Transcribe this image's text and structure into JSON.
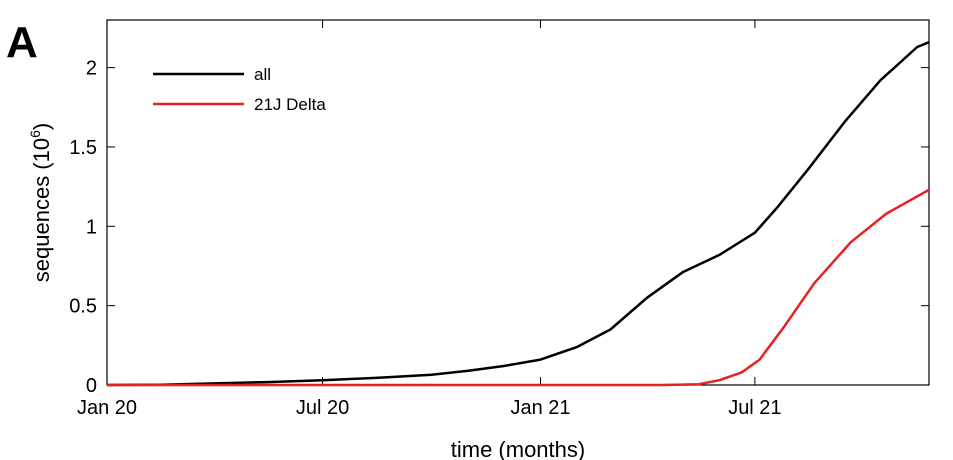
{
  "panel_label": "A",
  "chart_data": {
    "type": "line",
    "xlabel": "time (months)",
    "ylabel": "sequences (10",
    "ylabel_exponent": "6",
    "ylabel_close": ")",
    "x_domain": [
      "2020-01-01",
      "2021-11-25"
    ],
    "ylim": [
      0,
      2.3
    ],
    "grid": false,
    "legend_position": "top-left",
    "x_ticks": [
      {
        "date": "2020-01-01",
        "label": "Jan 20"
      },
      {
        "date": "2020-07-01",
        "label": "Jul 20"
      },
      {
        "date": "2021-01-01",
        "label": "Jan 21"
      },
      {
        "date": "2021-07-01",
        "label": "Jul 21"
      }
    ],
    "y_ticks": [
      {
        "value": 0,
        "label": "0"
      },
      {
        "value": 0.5,
        "label": "0.5"
      },
      {
        "value": 1,
        "label": "1"
      },
      {
        "value": 1.5,
        "label": "1.5"
      },
      {
        "value": 2,
        "label": "2"
      }
    ],
    "series": [
      {
        "name": "all",
        "color": "#000000",
        "points": [
          [
            "2020-01-01",
            0
          ],
          [
            "2020-02-15",
            0.002
          ],
          [
            "2020-04-01",
            0.01
          ],
          [
            "2020-05-15",
            0.018
          ],
          [
            "2020-07-01",
            0.03
          ],
          [
            "2020-08-15",
            0.045
          ],
          [
            "2020-10-01",
            0.065
          ],
          [
            "2020-11-01",
            0.09
          ],
          [
            "2020-12-01",
            0.12
          ],
          [
            "2021-01-01",
            0.16
          ],
          [
            "2021-02-01",
            0.24
          ],
          [
            "2021-03-01",
            0.35
          ],
          [
            "2021-04-01",
            0.55
          ],
          [
            "2021-05-01",
            0.71
          ],
          [
            "2021-06-01",
            0.82
          ],
          [
            "2021-07-01",
            0.96
          ],
          [
            "2021-07-20",
            1.12
          ],
          [
            "2021-08-15",
            1.36
          ],
          [
            "2021-09-15",
            1.66
          ],
          [
            "2021-10-15",
            1.92
          ],
          [
            "2021-11-15",
            2.13
          ],
          [
            "2021-11-25",
            2.16
          ]
        ]
      },
      {
        "name": "21J Delta",
        "color": "#e8211e",
        "points": [
          [
            "2020-01-01",
            0
          ],
          [
            "2021-04-15",
            0
          ],
          [
            "2021-05-15",
            0.005
          ],
          [
            "2021-06-01",
            0.03
          ],
          [
            "2021-06-20",
            0.08
          ],
          [
            "2021-07-05",
            0.16
          ],
          [
            "2021-07-25",
            0.36
          ],
          [
            "2021-08-20",
            0.64
          ],
          [
            "2021-09-20",
            0.9
          ],
          [
            "2021-10-20",
            1.08
          ],
          [
            "2021-11-25",
            1.23
          ]
        ]
      }
    ]
  }
}
